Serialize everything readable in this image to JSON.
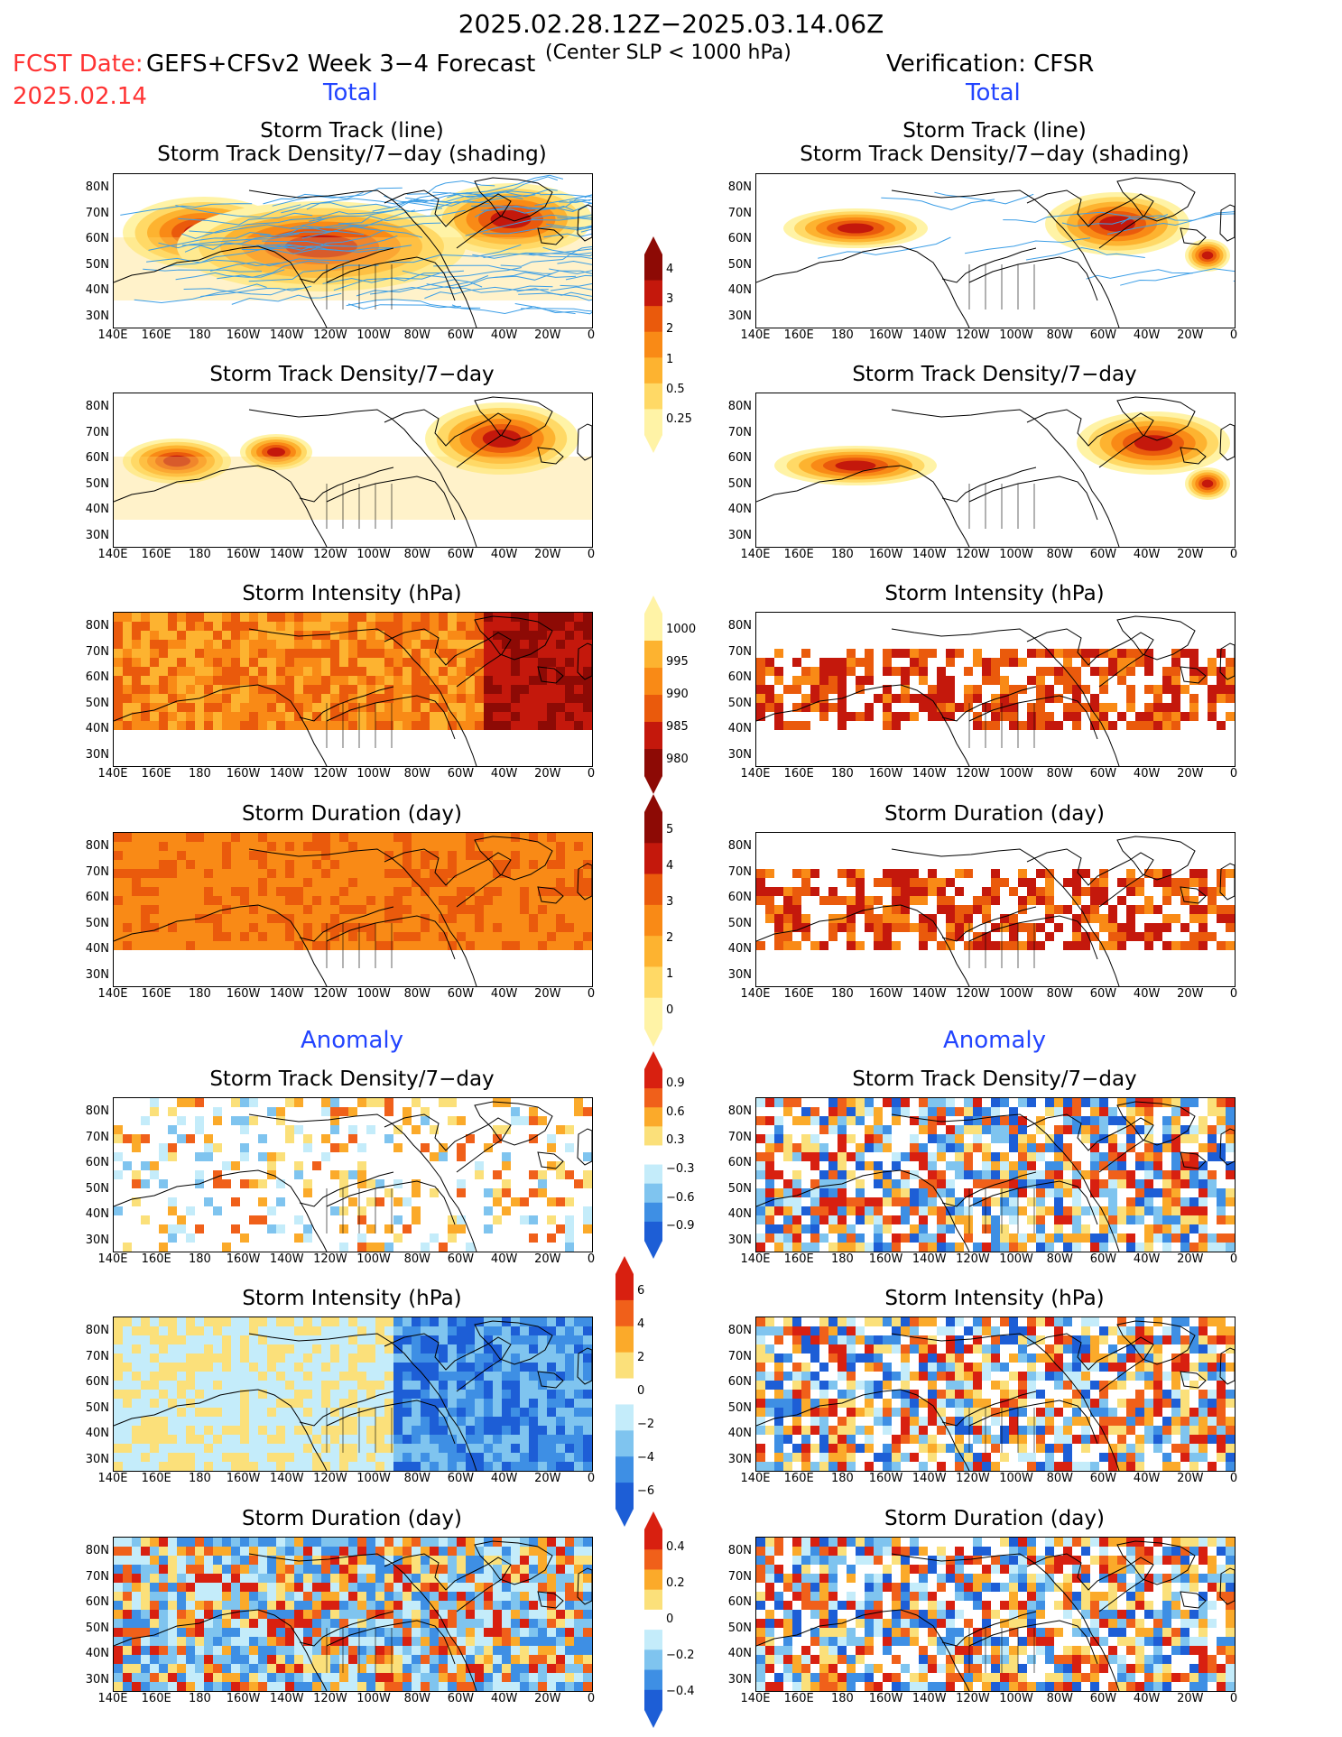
{
  "header": {
    "date_range": "2025.02.28.12Z−2025.03.14.06Z",
    "fcst_date_label": "FCST Date:",
    "fcst_date": "2025.02.14",
    "model": "GEFS+CFSv2 Week 3−4 Forecast",
    "criterion": "(Center SLP < 1000 hPa)",
    "verification": "Verification: CFSR"
  },
  "sections": {
    "total_left": "Total",
    "total_right": "Total",
    "anomaly_left": "Anomaly",
    "anomaly_right": "Anomaly"
  },
  "panel_titles": {
    "track_line": "Storm Track (line)",
    "track_shading": "Storm Track Density/7−day (shading)",
    "density": "Storm Track Density/7−day",
    "intensity": "Storm Intensity (hPa)",
    "duration": "Storm Duration (day)"
  },
  "axes": {
    "lat_labels": [
      "80N",
      "70N",
      "60N",
      "50N",
      "40N",
      "30N"
    ],
    "lon_labels": [
      "140E",
      "160E",
      "180",
      "160W",
      "140W",
      "120W",
      "100W",
      "80W",
      "60W",
      "40W",
      "20W",
      "0"
    ]
  },
  "colorbars": {
    "density_total": [
      "4",
      "3",
      "2",
      "1",
      "0.5",
      "0.25"
    ],
    "intensity_total": [
      "1000",
      "995",
      "990",
      "985",
      "980"
    ],
    "duration_total": [
      "5",
      "4",
      "3",
      "2",
      "1",
      "0"
    ],
    "density_anom": [
      "0.9",
      "0.6",
      "0.3",
      "−0.3",
      "−0.6",
      "−0.9"
    ],
    "intensity_anom": [
      "6",
      "4",
      "2",
      "0",
      "−2",
      "−4",
      "−6"
    ],
    "duration_anom": [
      "0.4",
      "0.2",
      "0",
      "−0.2",
      "−0.4"
    ]
  },
  "colors": {
    "warm": [
      "#fff3a6",
      "#ffd966",
      "#fdb330",
      "#f98a16",
      "#ea5a0c",
      "#c4180c",
      "#8d0a05"
    ],
    "anom_pos": [
      "#fbe07a",
      "#fbaa2a",
      "#f0601a",
      "#d82010"
    ],
    "anom_neg": [
      "#c4ecfa",
      "#7fc4ef",
      "#3e8fe4",
      "#1d5ed6"
    ],
    "track_line": "#3c9ee6"
  }
}
